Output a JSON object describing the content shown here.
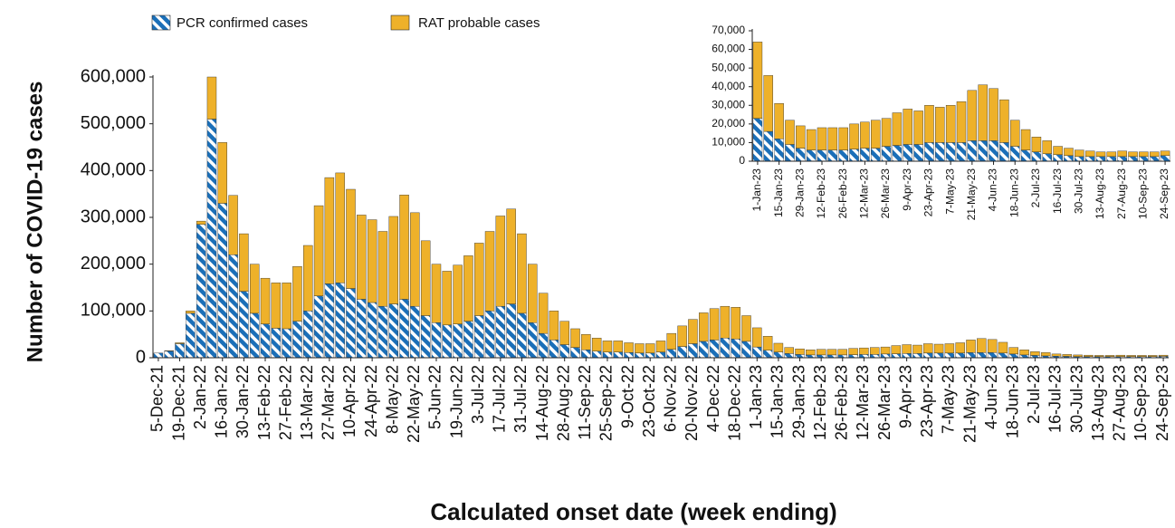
{
  "chart_data": [
    {
      "type": "bar",
      "stacked": true,
      "x_label": "Calculated onset date (week ending)",
      "y_label": "Number of COVID-19 cases",
      "categories": [
        "5-Dec-21",
        null,
        "19-Dec-21",
        null,
        "2-Jan-22",
        null,
        "16-Jan-22",
        null,
        "30-Jan-22",
        null,
        "13-Feb-22",
        null,
        "27-Feb-22",
        null,
        "13-Mar-22",
        null,
        "27-Mar-22",
        null,
        "10-Apr-22",
        null,
        "24-Apr-22",
        null,
        "8-May-22",
        null,
        "22-May-22",
        null,
        "5-Jun-22",
        null,
        "19-Jun-22",
        null,
        "3-Jul-22",
        null,
        "17-Jul-22",
        null,
        "31-Jul-22",
        null,
        "14-Aug-22",
        null,
        "28-Aug-22",
        null,
        "11-Sep-22",
        null,
        "25-Sep-22",
        null,
        "9-Oct-22",
        null,
        "23-Oct-22",
        null,
        "6-Nov-22",
        null,
        "20-Nov-22",
        null,
        "4-Dec-22",
        null,
        "18-Dec-22",
        null,
        "1-Jan-23",
        null,
        "15-Jan-23",
        null,
        "29-Jan-23",
        null,
        "12-Feb-23",
        null,
        "26-Feb-23",
        null,
        "12-Mar-23",
        null,
        "26-Mar-23",
        null,
        "9-Apr-23",
        null,
        "23-Apr-23",
        null,
        "7-May-23",
        null,
        "21-May-23",
        null,
        "4-Jun-23",
        null,
        "18-Jun-23",
        null,
        "2-Jul-23",
        null,
        "16-Jul-23",
        null,
        "30-Jul-23",
        null,
        "13-Aug-23",
        null,
        "27-Aug-23",
        null,
        "10-Sep-23",
        null,
        "24-Sep-23"
      ],
      "series": [
        {
          "name": "PCR confirmed cases",
          "color": "#1b6fb8",
          "pattern": "hatch",
          "values": [
            10000,
            14000,
            30000,
            95000,
            285000,
            510000,
            330000,
            220000,
            142000,
            95000,
            72000,
            63000,
            62000,
            78000,
            100000,
            132000,
            158000,
            160000,
            148000,
            125000,
            118000,
            110000,
            115000,
            125000,
            110000,
            90000,
            75000,
            70000,
            72000,
            78000,
            90000,
            100000,
            110000,
            115000,
            95000,
            75000,
            52000,
            38000,
            28000,
            22000,
            17000,
            14000,
            12000,
            12000,
            11000,
            10000,
            10000,
            12000,
            18000,
            24000,
            30000,
            35000,
            38000,
            42000,
            40000,
            35000,
            23000,
            16000,
            12000,
            9000,
            7000,
            6000,
            6000,
            6000,
            6000,
            6500,
            7000,
            7000,
            8000,
            8500,
            9000,
            9000,
            10000,
            10000,
            10000,
            10000,
            11000,
            11000,
            11000,
            10000,
            8000,
            6000,
            5000,
            4000,
            3500,
            3000,
            2500,
            2500,
            2500,
            2500,
            2500,
            2500,
            2500,
            2500,
            3000
          ]
        },
        {
          "name": "RAT probable cases",
          "color": "#eeb12a",
          "values": [
            0,
            1000,
            2000,
            5000,
            7000,
            90000,
            130000,
            127000,
            123000,
            105000,
            98000,
            97000,
            98000,
            117000,
            140000,
            193000,
            227000,
            235000,
            212000,
            180000,
            177000,
            160000,
            187000,
            223000,
            200000,
            160000,
            125000,
            115000,
            126000,
            140000,
            155000,
            170000,
            193000,
            203000,
            170000,
            125000,
            86000,
            62000,
            50000,
            40000,
            33000,
            28000,
            24000,
            24000,
            21000,
            20000,
            20000,
            24000,
            34000,
            44000,
            52000,
            61000,
            67000,
            68000,
            68000,
            55000,
            41000,
            30000,
            19000,
            13000,
            12000,
            11000,
            12000,
            12000,
            12000,
            13500,
            14000,
            15000,
            15000,
            17500,
            19000,
            18000,
            20000,
            19000,
            20000,
            22000,
            27000,
            30000,
            28000,
            23000,
            14000,
            11000,
            8000,
            7000,
            4500,
            4000,
            3500,
            3000,
            2500,
            2500,
            3000,
            2500,
            2500,
            2500,
            2500
          ]
        }
      ],
      "ylim": [
        0,
        600000
      ],
      "yticks": [
        0,
        {
          "value": 100000,
          "label": "100,000"
        },
        {
          "value": 200000,
          "label": "200,000"
        },
        {
          "value": 300000,
          "label": "300,000"
        },
        {
          "value": 400000,
          "label": "400,000"
        },
        {
          "value": 500000,
          "label": "500,000"
        },
        {
          "value": 600000,
          "label": "600,000"
        }
      ],
      "legend": "top-left",
      "grid": false
    },
    {
      "type": "bar",
      "stacked": true,
      "categories": [
        "1-Jan-23",
        null,
        "15-Jan-23",
        null,
        "29-Jan-23",
        null,
        "12-Feb-23",
        null,
        "26-Feb-23",
        null,
        "12-Mar-23",
        null,
        "26-Mar-23",
        null,
        "9-Apr-23",
        null,
        "23-Apr-23",
        null,
        "7-May-23",
        null,
        "21-May-23",
        null,
        "4-Jun-23",
        null,
        "18-Jun-23",
        null,
        "2-Jul-23",
        null,
        "16-Jul-23",
        null,
        "30-Jul-23",
        null,
        "13-Aug-23",
        null,
        "27-Aug-23",
        null,
        "10-Sep-23",
        null,
        "24-Sep-23"
      ],
      "series": [
        {
          "color": "#1b6fb8",
          "pattern": "hatch",
          "values": [
            23000,
            16000,
            12000,
            9000,
            7000,
            6000,
            6000,
            6000,
            6000,
            6500,
            7000,
            7000,
            8000,
            8500,
            9000,
            9000,
            10000,
            10000,
            10000,
            10000,
            11000,
            11000,
            11000,
            10000,
            8000,
            6000,
            5000,
            4000,
            3500,
            3000,
            2500,
            2500,
            2500,
            2500,
            2500,
            2500,
            2500,
            2500,
            3000
          ]
        },
        {
          "color": "#eeb12a",
          "values": [
            41000,
            30000,
            19000,
            13000,
            12000,
            11000,
            12000,
            12000,
            12000,
            13500,
            14000,
            15000,
            15000,
            17500,
            19000,
            18000,
            20000,
            19000,
            20000,
            22000,
            27000,
            30000,
            28000,
            23000,
            14000,
            11000,
            8000,
            7000,
            4500,
            4000,
            3500,
            3000,
            2500,
            2500,
            3000,
            2500,
            2500,
            2500,
            2500
          ]
        }
      ],
      "ylim": [
        0,
        70000
      ],
      "yticks": [
        0,
        {
          "value": 10000,
          "label": "10,000"
        },
        {
          "value": 20000,
          "label": "20,000"
        },
        {
          "value": 30000,
          "label": "30,000"
        },
        {
          "value": 40000,
          "label": "40,000"
        },
        {
          "value": 50000,
          "label": "50,000"
        },
        {
          "value": 60000,
          "label": "60,000"
        },
        {
          "value": 70000,
          "label": "70,000"
        }
      ],
      "grid": false
    }
  ]
}
